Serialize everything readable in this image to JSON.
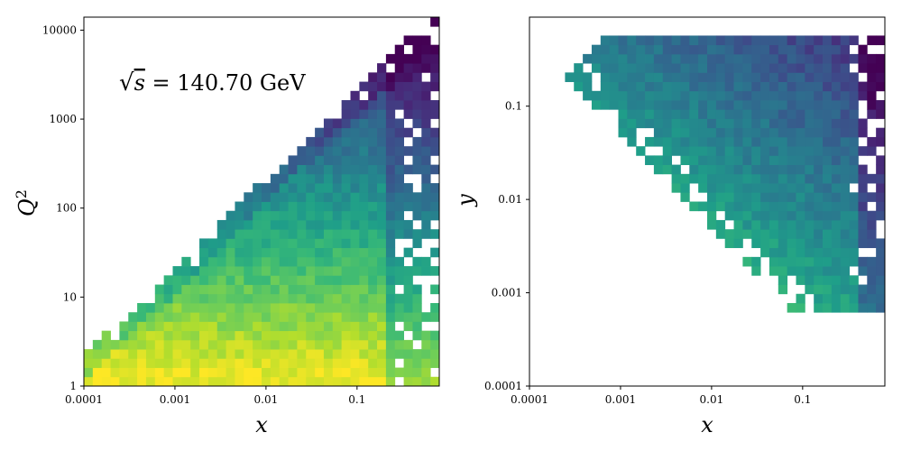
{
  "chart_data": [
    {
      "type": "heatmap",
      "xlabel": "x",
      "ylabel": "Q",
      "ylabel_sup": "2",
      "x_scale": "log",
      "y_scale": "log",
      "xlim": [
        0.0001,
        0.8
      ],
      "ylim": [
        1,
        14000
      ],
      "x_ticks": [
        0.0001,
        0.001,
        0.01,
        0.1
      ],
      "x_tick_labels": [
        "0.0001",
        "0.001",
        "0.01",
        "0.1"
      ],
      "y_ticks": [
        1,
        10,
        100,
        1000,
        10000
      ],
      "y_tick_labels": [
        "1",
        "10",
        "100",
        "1000",
        "10000"
      ],
      "annotation": {
        "prefix": "√",
        "variable": "s",
        "rest": " = 140.70 GeV"
      },
      "colormap": "viridis",
      "grid": false
    },
    {
      "type": "heatmap",
      "xlabel": "x",
      "ylabel": "y",
      "x_scale": "log",
      "y_scale": "log",
      "xlim": [
        0.0001,
        0.8
      ],
      "ylim": [
        0.0001,
        0.9
      ],
      "x_ticks": [
        0.0001,
        0.001,
        0.01,
        0.1
      ],
      "x_tick_labels": [
        "0.0001",
        "0.001",
        "0.01",
        "0.1"
      ],
      "y_ticks": [
        0.0001,
        0.001,
        0.01,
        0.1
      ],
      "y_tick_labels": [
        "0.0001",
        "0.001",
        "0.01",
        "0.1"
      ],
      "colormap": "viridis",
      "grid": false
    }
  ]
}
